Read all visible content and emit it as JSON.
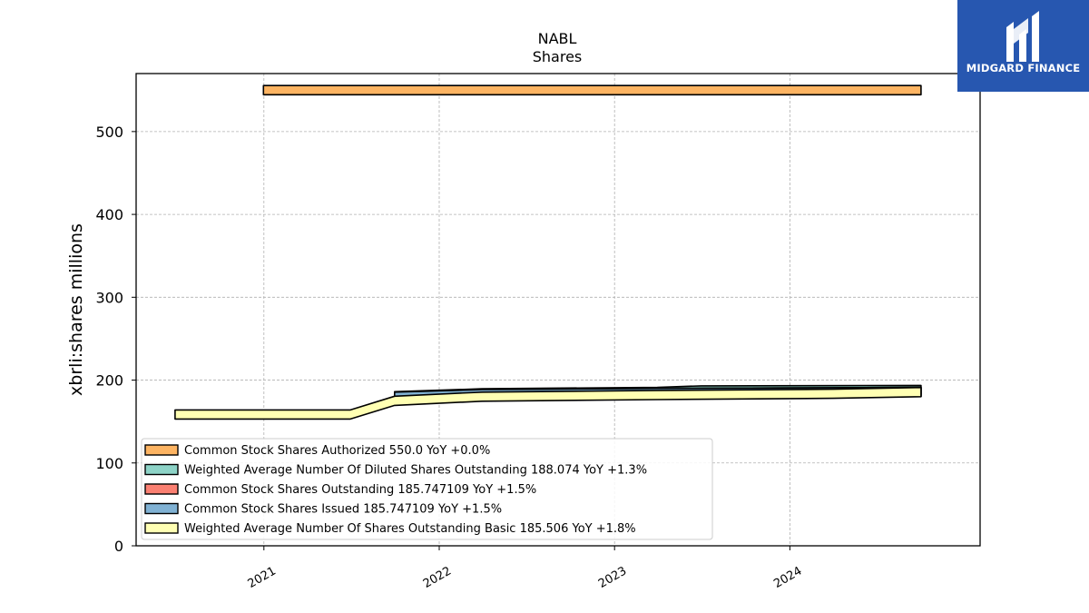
{
  "brand": {
    "name": "MIDGARD FINANCE",
    "color": "#2757b0"
  },
  "chart_data": {
    "type": "area",
    "title": "NABL",
    "subtitle": "Shares",
    "xlabel": "",
    "ylabel": "xbrli:shares millions",
    "ylim": [
      0,
      570
    ],
    "xlim": [
      "2020-04-10",
      "2025-01-31"
    ],
    "yticks": [
      "0",
      "100",
      "200",
      "300",
      "400",
      "500"
    ],
    "xticks": [
      {
        "label": "2021",
        "date": "2021-01-01"
      },
      {
        "label": "2022",
        "date": "2022-01-01"
      },
      {
        "label": "2023",
        "date": "2023-01-01"
      },
      {
        "label": "2024",
        "date": "2024-01-01"
      }
    ],
    "grid": true,
    "legend_position": "lower-left",
    "series": [
      {
        "name": "Common Stock Shares Authorized",
        "legend": "Common Stock Shares Authorized  550.0 YoY +0.0%",
        "color": "#fdb462",
        "dates": [
          "2020-12-31",
          "2024-09-30"
        ],
        "values": [
          550.0,
          550.0
        ]
      },
      {
        "name": "Weighted Average Number Of Diluted Shares Outstanding",
        "legend": "Weighted Average Number Of Diluted Shares Outstanding  188.074 YoY +1.3%",
        "color": "#8dd3c7",
        "dates": [
          "2021-09-30",
          "2022-03-31",
          "2023-03-31",
          "2023-06-30",
          "2024-09-30"
        ],
        "values": [
          180.5,
          184.0,
          185.8,
          187.5,
          188.074
        ]
      },
      {
        "name": "Common Stock Shares Outstanding",
        "legend": "Common Stock Shares Outstanding  185.747109 YoY +1.5%",
        "color": "#fb8072",
        "dates": [
          "2021-09-30",
          "2022-03-31",
          "2023-03-31",
          "2024-09-30"
        ],
        "values": [
          180.0,
          183.0,
          184.5,
          185.747
        ]
      },
      {
        "name": "Common Stock Shares Issued",
        "legend": "Common Stock Shares Issued  185.747109 YoY +1.5%",
        "color": "#80b1d3",
        "dates": [
          "2021-09-30",
          "2022-03-31",
          "2023-03-31",
          "2024-09-30"
        ],
        "values": [
          180.0,
          183.0,
          184.5,
          185.747
        ]
      },
      {
        "name": "Weighted Average Number Of Shares Outstanding Basic",
        "legend": "Weighted Average Number Of Shares Outstanding Basic  185.506 YoY +1.8%",
        "color": "#ffffb3",
        "dates": [
          "2020-06-30",
          "2021-06-30",
          "2021-09-30",
          "2022-03-31",
          "2023-03-31",
          "2024-03-31",
          "2024-09-30"
        ],
        "values": [
          158.5,
          158.5,
          175.0,
          180.0,
          182.0,
          183.5,
          185.506
        ]
      }
    ]
  }
}
